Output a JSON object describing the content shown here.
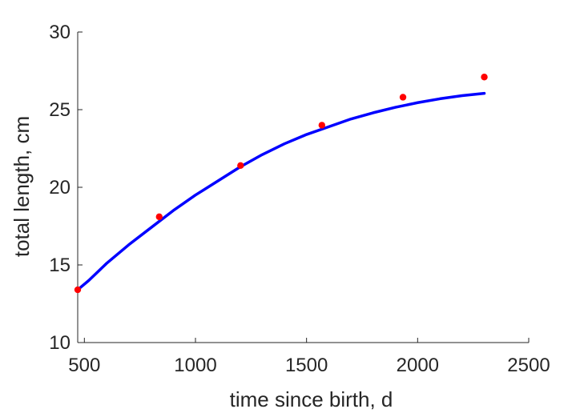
{
  "chart_data": {
    "type": "scatter",
    "title": "",
    "xlabel": "time since birth, d",
    "ylabel": "total length, cm",
    "xlim": [
      470,
      2500
    ],
    "ylim": [
      10,
      30
    ],
    "xticks": [
      500,
      1000,
      1500,
      2000,
      2500
    ],
    "yticks": [
      10,
      15,
      20,
      25,
      30
    ],
    "grid": false,
    "colors": {
      "data": "#ff0000",
      "fit": "#0000ff",
      "axis": "#262626"
    },
    "series": [
      {
        "kind": "scatter",
        "x": [
          470,
          837,
          1203,
          1569,
          1934,
          2300
        ],
        "y": [
          13.4,
          18.1,
          21.4,
          24.0,
          25.8,
          27.1
        ]
      },
      {
        "kind": "line",
        "x": [
          470,
          520,
          600,
          700,
          800,
          900,
          1000,
          1100,
          1200,
          1300,
          1400,
          1500,
          1600,
          1700,
          1800,
          1900,
          2000,
          2100,
          2200,
          2300
        ],
        "y": [
          13.4,
          14.0,
          15.1,
          16.3,
          17.4,
          18.5,
          19.5,
          20.4,
          21.3,
          22.1,
          22.8,
          23.4,
          23.9,
          24.4,
          24.8,
          25.15,
          25.45,
          25.7,
          25.9,
          26.05
        ]
      }
    ]
  }
}
